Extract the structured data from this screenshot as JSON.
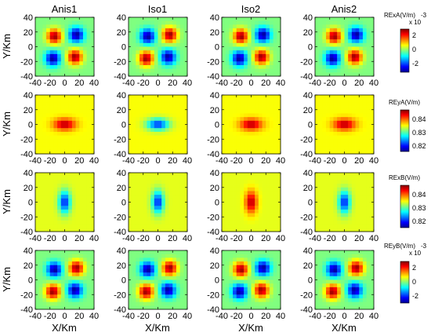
{
  "chart_data": {
    "type": "heatmap",
    "columns": [
      "Anis1",
      "Iso1",
      "Iso2",
      "Anis2"
    ],
    "xlabel": "X/Km",
    "ylabel": "Y/Km",
    "x_range": [
      -40,
      40
    ],
    "y_range": [
      -40,
      40
    ],
    "x_ticks": [
      "-40",
      "-20",
      "0",
      "20",
      "40"
    ],
    "y_ticks": [
      "40",
      "20",
      "0",
      "-20",
      "-40"
    ],
    "colormap": "jet",
    "rows": [
      {
        "key": "row1",
        "colorbar_title": "RExA(V/m)",
        "colorbar_exp": "-3",
        "colorbar_mult": "x 10",
        "clim": [
          -3,
          3
        ],
        "colorbar_ticks": [
          "2",
          "0",
          "-2"
        ],
        "pattern": "quadrant",
        "panel_signs": [
          1,
          -1,
          1,
          1
        ]
      },
      {
        "key": "row2",
        "colorbar_title": "REyA(V/m)",
        "colorbar_exp": "",
        "colorbar_mult": "",
        "clim": [
          0.818,
          0.849
        ],
        "colorbar_ticks": [
          "0.84",
          "0.83",
          "0.82"
        ],
        "pattern": "horizontal_blob",
        "panel_signs": [
          1,
          -1,
          1,
          1
        ]
      },
      {
        "key": "row3",
        "colorbar_title": "RExB(V/m)",
        "colorbar_exp": "",
        "colorbar_mult": "",
        "clim": [
          0.818,
          0.849
        ],
        "colorbar_ticks": [
          "0.84",
          "0.83",
          "0.82"
        ],
        "pattern": "vertical_blob",
        "panel_signs": [
          -1,
          -1,
          1,
          -1
        ]
      },
      {
        "key": "row4",
        "colorbar_title": "REyB(V/m)",
        "colorbar_exp": "-3",
        "colorbar_mult": "x 10",
        "clim": [
          -3,
          3
        ],
        "colorbar_ticks": [
          "2",
          "0",
          "-2"
        ],
        "pattern": "quadrant",
        "panel_signs": [
          -1,
          -1,
          1,
          -1
        ]
      }
    ]
  }
}
